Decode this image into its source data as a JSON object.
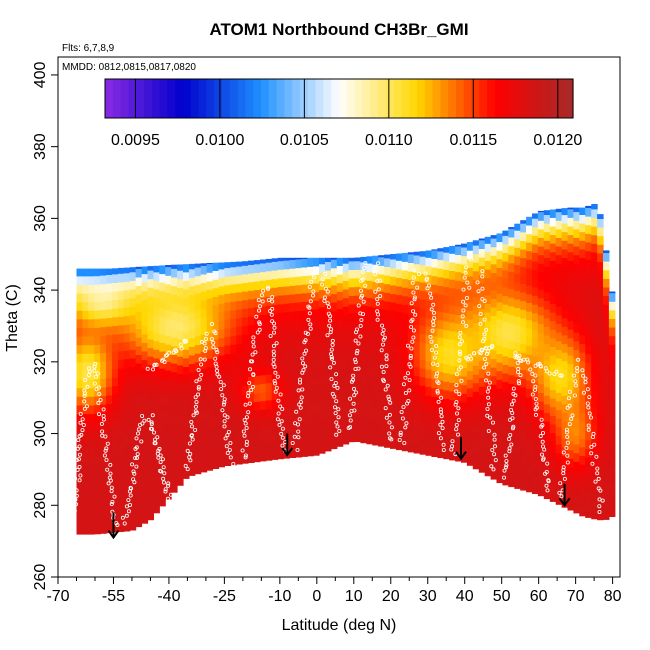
{
  "chart_data": {
    "type": "heatmap",
    "title": "ATOM1 Northbound CH3Br_GMI",
    "annotations": {
      "flights": "Flts: 6,7,8,9",
      "dates": "MMDD: 0812,0815,0817,0820"
    },
    "xlabel": "Latitude (deg N)",
    "ylabel": "Theta (C)",
    "xlim": [
      -70,
      82
    ],
    "ylim": [
      260,
      405
    ],
    "x_ticks": [
      -70,
      -55,
      -40,
      -25,
      -10,
      0,
      10,
      20,
      30,
      40,
      50,
      60,
      70,
      80
    ],
    "x_minor_ticks": [
      -65,
      -60,
      -50,
      -45,
      -35,
      -30,
      -20,
      -15,
      -5,
      5,
      15,
      25,
      35,
      45,
      55,
      65,
      75
    ],
    "y_ticks": [
      260,
      280,
      300,
      320,
      340,
      360,
      380,
      400
    ],
    "colorbar": {
      "min": 0.00932,
      "max": 0.01209,
      "ticks": [
        0.0095,
        0.01,
        0.0105,
        0.011,
        0.0115,
        0.012
      ],
      "tick_labels": [
        "0.0095",
        "0.0100",
        "0.0105",
        "0.0110",
        "0.0115",
        "0.0120"
      ],
      "colors": [
        "#8a2be2",
        "#0000cd",
        "#1e90ff",
        "#ffffff",
        "#ffd700",
        "#ff0000",
        "#a52a2a"
      ]
    },
    "domain": {
      "top": [
        [
          -56,
          346
        ],
        [
          -40,
          347
        ],
        [
          -20,
          348
        ],
        [
          -10,
          349
        ],
        [
          0,
          349
        ],
        [
          10,
          349
        ],
        [
          20,
          350
        ],
        [
          30,
          351
        ],
        [
          40,
          353
        ],
        [
          50,
          356
        ],
        [
          55,
          359
        ],
        [
          60,
          362
        ],
        [
          68,
          363
        ],
        [
          72,
          363
        ],
        [
          75,
          364
        ],
        [
          76,
          365
        ],
        [
          79,
          346
        ],
        [
          80,
          338
        ],
        [
          80,
          325
        ]
      ],
      "bottom": [
        [
          -65,
          272
        ],
        [
          -60,
          272
        ],
        [
          -50,
          273
        ],
        [
          -45,
          276
        ],
        [
          -35,
          288
        ],
        [
          -25,
          291
        ],
        [
          -10,
          293
        ],
        [
          0,
          294
        ],
        [
          10,
          298
        ],
        [
          20,
          296
        ],
        [
          30,
          294
        ],
        [
          40,
          292
        ],
        [
          50,
          286
        ],
        [
          60,
          283
        ],
        [
          68,
          279
        ],
        [
          72,
          277
        ],
        [
          76,
          276
        ],
        [
          78,
          276
        ],
        [
          80,
          277
        ],
        [
          80,
          280
        ]
      ]
    },
    "field": {
      "base": 0.01185,
      "top_value": 0.01,
      "blob_value": 0.01105,
      "blobs": [
        {
          "lat": -62,
          "theta": 317,
          "s_lat": 7,
          "s_theta": 11,
          "amp": 1
        },
        {
          "lat": -38,
          "theta": 329,
          "s_lat": 14,
          "s_theta": 10,
          "amp": 1
        },
        {
          "lat": -58,
          "theta": 336,
          "s_lat": 8,
          "s_theta": 6,
          "amp": 0.8
        },
        {
          "lat": -15,
          "theta": 312,
          "s_lat": 6,
          "s_theta": 6,
          "amp": 0.5
        },
        {
          "lat": 36,
          "theta": 322,
          "s_lat": 10,
          "s_theta": 12,
          "amp": 0.9
        },
        {
          "lat": 52,
          "theta": 328,
          "s_lat": 12,
          "s_theta": 12,
          "amp": 1
        },
        {
          "lat": 66,
          "theta": 316,
          "s_lat": 8,
          "s_theta": 12,
          "amp": 0.9
        },
        {
          "lat": 70,
          "theta": 300,
          "s_lat": 6,
          "s_theta": 10,
          "amp": 0.6
        }
      ]
    },
    "arrows": [
      {
        "lat": -55,
        "theta_top": 278,
        "theta_tip": 271
      },
      {
        "lat": -8,
        "theta_top": 300,
        "theta_tip": 294
      },
      {
        "lat": 39,
        "theta_top": 299,
        "theta_tip": 293
      },
      {
        "lat": 67,
        "theta_top": 286,
        "theta_tip": 280
      }
    ],
    "flight_tracks": [
      {
        "lat_start": -66,
        "lat_end": -62,
        "theta_start": 274,
        "theta_end": 318,
        "n": 40
      },
      {
        "lat_start": -60,
        "lat_end": -54,
        "theta_start": 320,
        "theta_end": 274,
        "n": 40
      },
      {
        "lat_start": -52,
        "lat_end": -47,
        "theta_start": 275,
        "theta_end": 305,
        "n": 30
      },
      {
        "lat_start": -45,
        "lat_end": -40,
        "theta_start": 305,
        "theta_end": 282,
        "n": 30
      },
      {
        "lat_start": -35,
        "lat_end": -30,
        "theta_start": 290,
        "theta_end": 328,
        "n": 35
      },
      {
        "lat_start": -28,
        "lat_end": -23,
        "theta_start": 330,
        "theta_end": 292,
        "n": 35
      },
      {
        "lat_start": -20,
        "lat_end": -15,
        "theta_start": 293,
        "theta_end": 340,
        "n": 40
      },
      {
        "lat_start": -13,
        "lat_end": -9,
        "theta_start": 341,
        "theta_end": 295,
        "n": 40
      },
      {
        "lat_start": -6,
        "lat_end": -1,
        "theta_start": 296,
        "theta_end": 343,
        "n": 40
      },
      {
        "lat_start": 2,
        "lat_end": 6,
        "theta_start": 344,
        "theta_end": 300,
        "n": 40
      },
      {
        "lat_start": 9,
        "lat_end": 13,
        "theta_start": 301,
        "theta_end": 347,
        "n": 40
      },
      {
        "lat_start": 16,
        "lat_end": 20,
        "theta_start": 347,
        "theta_end": 298,
        "n": 40
      },
      {
        "lat_start": 23,
        "lat_end": 27,
        "theta_start": 297,
        "theta_end": 346,
        "n": 40
      },
      {
        "lat_start": 30,
        "lat_end": 34,
        "theta_start": 345,
        "theta_end": 296,
        "n": 40
      },
      {
        "lat_start": 37,
        "lat_end": 41,
        "theta_start": 294,
        "theta_end": 348,
        "n": 40
      },
      {
        "lat_start": 44,
        "lat_end": 48,
        "theta_start": 345,
        "theta_end": 290,
        "n": 40
      },
      {
        "lat_start": 51,
        "lat_end": 55,
        "theta_start": 288,
        "theta_end": 322,
        "n": 30
      },
      {
        "lat_start": 58,
        "lat_end": 63,
        "theta_start": 318,
        "theta_end": 284,
        "n": 30
      },
      {
        "lat_start": 66,
        "lat_end": 70,
        "theta_start": 282,
        "theta_end": 320,
        "n": 30
      },
      {
        "lat_start": 72,
        "lat_end": 77,
        "theta_start": 318,
        "theta_end": 278,
        "n": 30
      },
      {
        "lat_start": -45,
        "lat_end": -35,
        "theta_start": 318,
        "theta_end": 326,
        "n": 20
      },
      {
        "lat_start": 40,
        "lat_end": 48,
        "theta_start": 321,
        "theta_end": 324,
        "n": 15
      },
      {
        "lat_start": 53,
        "lat_end": 66,
        "theta_start": 322,
        "theta_end": 316,
        "n": 20
      }
    ]
  }
}
